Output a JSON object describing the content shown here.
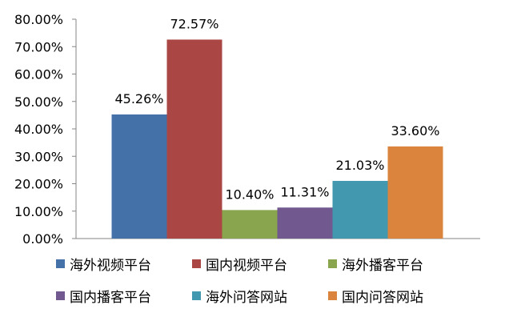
{
  "chart_data": {
    "type": "bar",
    "categories": [
      "海外视频平台",
      "国内视频平台",
      "海外播客平台",
      "国内播客平台",
      "海外问答网站",
      "国内问答网站"
    ],
    "values": [
      45.26,
      72.57,
      10.4,
      11.31,
      21.03,
      33.6
    ],
    "value_labels": [
      "45.26%",
      "72.57%",
      "10.40%",
      "11.31%",
      "21.03%",
      "33.60%"
    ],
    "colors": [
      "#4472a8",
      "#aa4643",
      "#89a54e",
      "#71588f",
      "#4198af",
      "#db843d"
    ],
    "ylim": [
      0,
      80
    ],
    "yticks": [
      0,
      10,
      20,
      30,
      40,
      50,
      60,
      70,
      80
    ],
    "ytick_labels": [
      "0.00%",
      "10.00%",
      "20.00%",
      "30.00%",
      "40.00%",
      "50.00%",
      "60.00%",
      "70.00%",
      "80.00%"
    ],
    "title": "",
    "xlabel": "",
    "ylabel": "",
    "grid": false,
    "legend_position": "bottom"
  }
}
